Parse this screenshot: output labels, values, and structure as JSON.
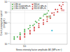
{
  "chart_data": {
    "type": "scatter",
    "xlabel": "Stress intensity factor amplitude ΔK (MPa·m¹²)",
    "ylabel": "Crack propagation speed\n(m/cycle)",
    "log": true,
    "xlim": [
      5,
      80
    ],
    "ylim": [
      1e-08,
      0.0001
    ],
    "xticks": [
      {
        "value": 10,
        "label": "10¹"
      }
    ],
    "yticks": [
      {
        "value": 1e-08,
        "label": "10⁻⁸"
      },
      {
        "value": 1e-07,
        "label": "10⁻⁷"
      },
      {
        "value": 1e-06,
        "label": "10⁻⁶"
      },
      {
        "value": 1e-05,
        "label": "10⁻⁵"
      },
      {
        "value": 0.0001,
        "label": "10⁻⁴"
      }
    ],
    "grid": true,
    "legend": "upper left",
    "series": [
      {
        "name": "C-Mn air",
        "color": "#44aa44",
        "marker": "square",
        "x": [
          6,
          7,
          8,
          10,
          12,
          15,
          18,
          22,
          28
        ],
        "values": [
          3e-08,
          5e-08,
          8e-08,
          1.5e-07,
          3e-07,
          6e-07,
          1.2e-06,
          3e-06,
          7e-06
        ]
      },
      {
        "name": "C-Mn 0.0069 MPa H₂",
        "color": "#44aa44",
        "marker": "triangle",
        "x": [
          6,
          8,
          10,
          13,
          16,
          20,
          25,
          30
        ],
        "values": [
          4e-08,
          9e-08,
          2e-07,
          4e-07,
          8e-07,
          2e-06,
          5e-06,
          9e-06
        ]
      },
      {
        "name": "C-Mn 0.9 MPa H₂",
        "color": "#44aa44",
        "marker": "circle",
        "x": [
          6,
          8,
          10,
          13,
          17,
          21,
          26,
          32
        ],
        "values": [
          5e-08,
          1.2e-07,
          2.5e-07,
          6e-07,
          1.5e-06,
          3e-06,
          7e-06,
          1.5e-05
        ]
      },
      {
        "name": "X60 air",
        "color": "#cc2222",
        "marker": "square",
        "x": [
          8,
          10,
          13,
          16,
          20,
          25,
          30,
          35,
          42,
          50,
          60
        ],
        "values": [
          3e-08,
          5e-08,
          1e-07,
          2e-07,
          4e-07,
          8e-07,
          1.5e-06,
          3e-06,
          6e-06,
          1.2e-05,
          2.5e-05
        ]
      },
      {
        "name": "X60 5.5 MPa H₂",
        "color": "#cc2222",
        "marker": "triangle",
        "x": [
          8,
          10,
          13,
          16,
          20,
          25,
          30,
          35,
          42,
          50,
          60,
          65
        ],
        "values": [
          4e-08,
          8e-08,
          1.5e-07,
          3e-07,
          6e-07,
          1.2e-06,
          2.5e-06,
          5e-06,
          1e-05,
          2e-05,
          4e-05,
          6e-05
        ]
      },
      {
        "name": "X60 69 MPa H₂",
        "color": "#cc2222",
        "marker": "circle",
        "x": [
          8,
          10,
          13,
          16,
          20,
          25,
          30,
          38,
          45,
          55,
          65
        ],
        "values": [
          5e-08,
          1e-07,
          2e-07,
          4e-07,
          9e-07,
          2e-06,
          4e-06,
          9e-06,
          2e-05,
          5e-05,
          0.0001
        ]
      },
      {
        "color": "#00aacc",
        "marker": "circle",
        "x": [
          38
        ],
        "values": [
          2e-07
        ]
      }
    ],
    "annotations": [
      {
        "text": "X60",
        "x": 58,
        "y": 1.5e-05,
        "color": "#cc2222"
      },
      {
        "text": "C-Mn",
        "x": 28,
        "y": 4e-06,
        "color": "#44aa44"
      }
    ]
  }
}
